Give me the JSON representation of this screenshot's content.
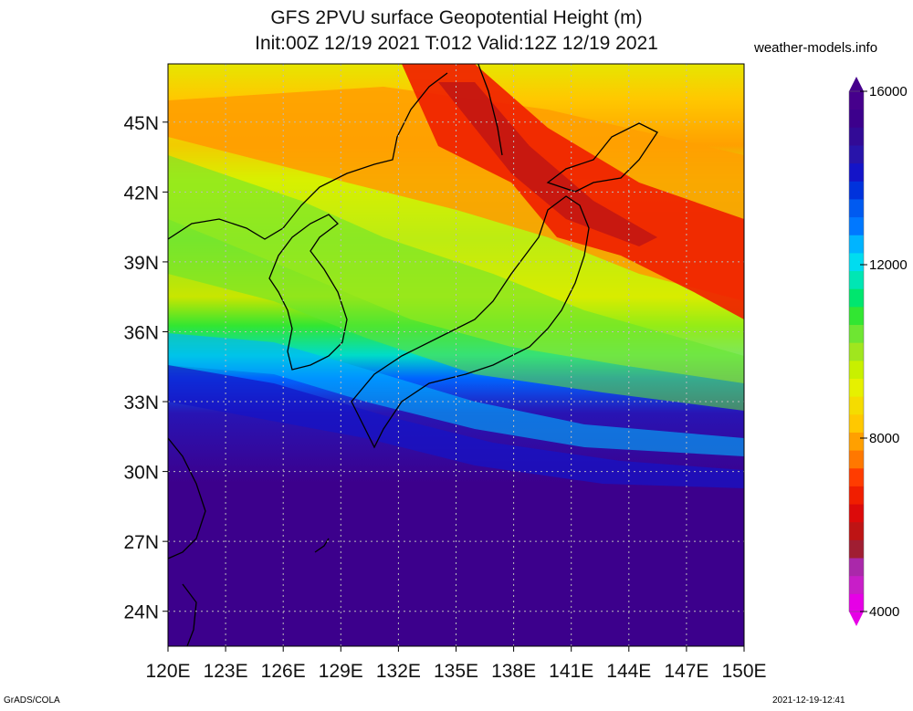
{
  "title": {
    "line1": "GFS 2PVU surface Geopotential Height (m)",
    "line2": "Init:00Z 12/19 2021 T:012 Valid:12Z 12/19 2021"
  },
  "site": "weather-models.info",
  "footer": {
    "left": "GrADS/COLA",
    "right": "2021-12-19-12:41"
  },
  "map": {
    "lon_range": [
      120,
      150
    ],
    "lat_range": [
      22.5,
      47.5
    ],
    "lat_ticks": [
      {
        "value": 24,
        "label": "24N"
      },
      {
        "value": 27,
        "label": "27N"
      },
      {
        "value": 30,
        "label": "30N"
      },
      {
        "value": 33,
        "label": "33N"
      },
      {
        "value": 36,
        "label": "36N"
      },
      {
        "value": 39,
        "label": "39N"
      },
      {
        "value": 42,
        "label": "42N"
      },
      {
        "value": 45,
        "label": "45N"
      }
    ],
    "lon_ticks": [
      {
        "value": 120,
        "label": "120E"
      },
      {
        "value": 123,
        "label": "123E"
      },
      {
        "value": 126,
        "label": "126E"
      },
      {
        "value": 129,
        "label": "129E"
      },
      {
        "value": 132,
        "label": "132E"
      },
      {
        "value": 135,
        "label": "135E"
      },
      {
        "value": 138,
        "label": "138E"
      },
      {
        "value": 141,
        "label": "141E"
      },
      {
        "value": 144,
        "label": "144E"
      },
      {
        "value": 147,
        "label": "147E"
      },
      {
        "value": 150,
        "label": "150E"
      }
    ],
    "grid": true
  },
  "colorbar": {
    "min": 4000,
    "max": 16000,
    "labels": [
      "16000",
      "12000",
      "8000",
      "4000"
    ],
    "label_values": [
      16000,
      12000,
      8000,
      4000
    ],
    "colors": [
      "#e600e6",
      "#c81ec8",
      "#aa28aa",
      "#a01e32",
      "#be1414",
      "#dc0a0a",
      "#f01e00",
      "#ff3c00",
      "#ff7800",
      "#ffa000",
      "#ffc800",
      "#f5dc00",
      "#e6f000",
      "#c8f000",
      "#a0e61e",
      "#6ee632",
      "#32e632",
      "#00e66e",
      "#00e6b4",
      "#00dcf0",
      "#00b4ff",
      "#0078ff",
      "#005af0",
      "#0032dc",
      "#1414c8",
      "#2814aa",
      "#320a96",
      "#3c008c",
      "#46008c"
    ]
  },
  "chart_data": {
    "type": "heatmap",
    "variable": "2PVU surface Geopotential Height",
    "units": "m",
    "x_range_deg_E": [
      120,
      150
    ],
    "y_range_deg_N": [
      22.5,
      47.5
    ],
    "value_range": [
      4000,
      16000
    ],
    "approx_bands": [
      {
        "lat_range": [
          22.5,
          30
        ],
        "value": 15500
      },
      {
        "lat_range": [
          30,
          33
        ],
        "value": 13500
      },
      {
        "lat_range": [
          33,
          37
        ],
        "value": 11000
      },
      {
        "lat_range": [
          37,
          43
        ],
        "value": 9000
      },
      {
        "lat_range": [
          39,
          47.5
        ],
        "value": 6500
      }
    ]
  }
}
